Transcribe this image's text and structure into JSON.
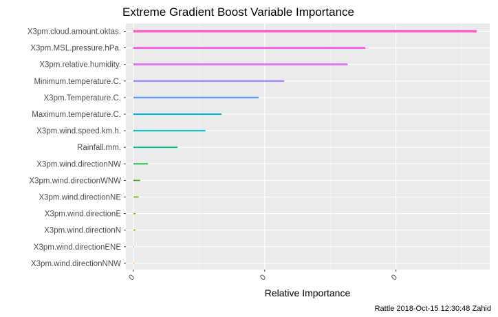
{
  "chart_data": {
    "type": "bar",
    "orientation": "horizontal",
    "title": "Extreme Gradient Boost Variable Importance",
    "xlabel": "Relative Importance",
    "ylabel": "",
    "caption": "Rattle 2018-Oct-15 12:30:48 Zahid",
    "x_ticks": [
      "0",
      "0",
      "0"
    ],
    "xlim": [
      -0.02,
      0.95
    ],
    "grid": true,
    "legend": "none",
    "categories": [
      "X3pm.cloud.amount.oktas.",
      "X3pm.MSL.pressure.hPa.",
      "X3pm.relative.humidity.",
      "Minimum.temperature.C.",
      "X3pm.Temperature.C.",
      "Maximum.temperature.C.",
      "X3pm.wind.speed.km.h.",
      "Rainfall.mm.",
      "X3pm.wind.directionNW",
      "X3pm.wind.directionWNW",
      "X3pm.wind.directionNE",
      "X3pm.wind.directionE",
      "X3pm.wind.directionN",
      "X3pm.wind.directionENE",
      "X3pm.wind.directionNNW"
    ],
    "values": [
      0.915,
      0.618,
      0.571,
      0.402,
      0.334,
      0.235,
      0.192,
      0.118,
      0.039,
      0.018,
      0.014,
      0.006,
      0.005,
      0.002,
      0.001
    ],
    "colors": [
      "#FF61C3",
      "#F763E0",
      "#DB72FB",
      "#A58AFF",
      "#619CFF",
      "#00B8E7",
      "#00BFC4",
      "#00C19A",
      "#00BA38",
      "#39B600",
      "#7CAE00",
      "#9CA700",
      "#B79F00",
      "#D39200",
      "#E58700"
    ]
  }
}
